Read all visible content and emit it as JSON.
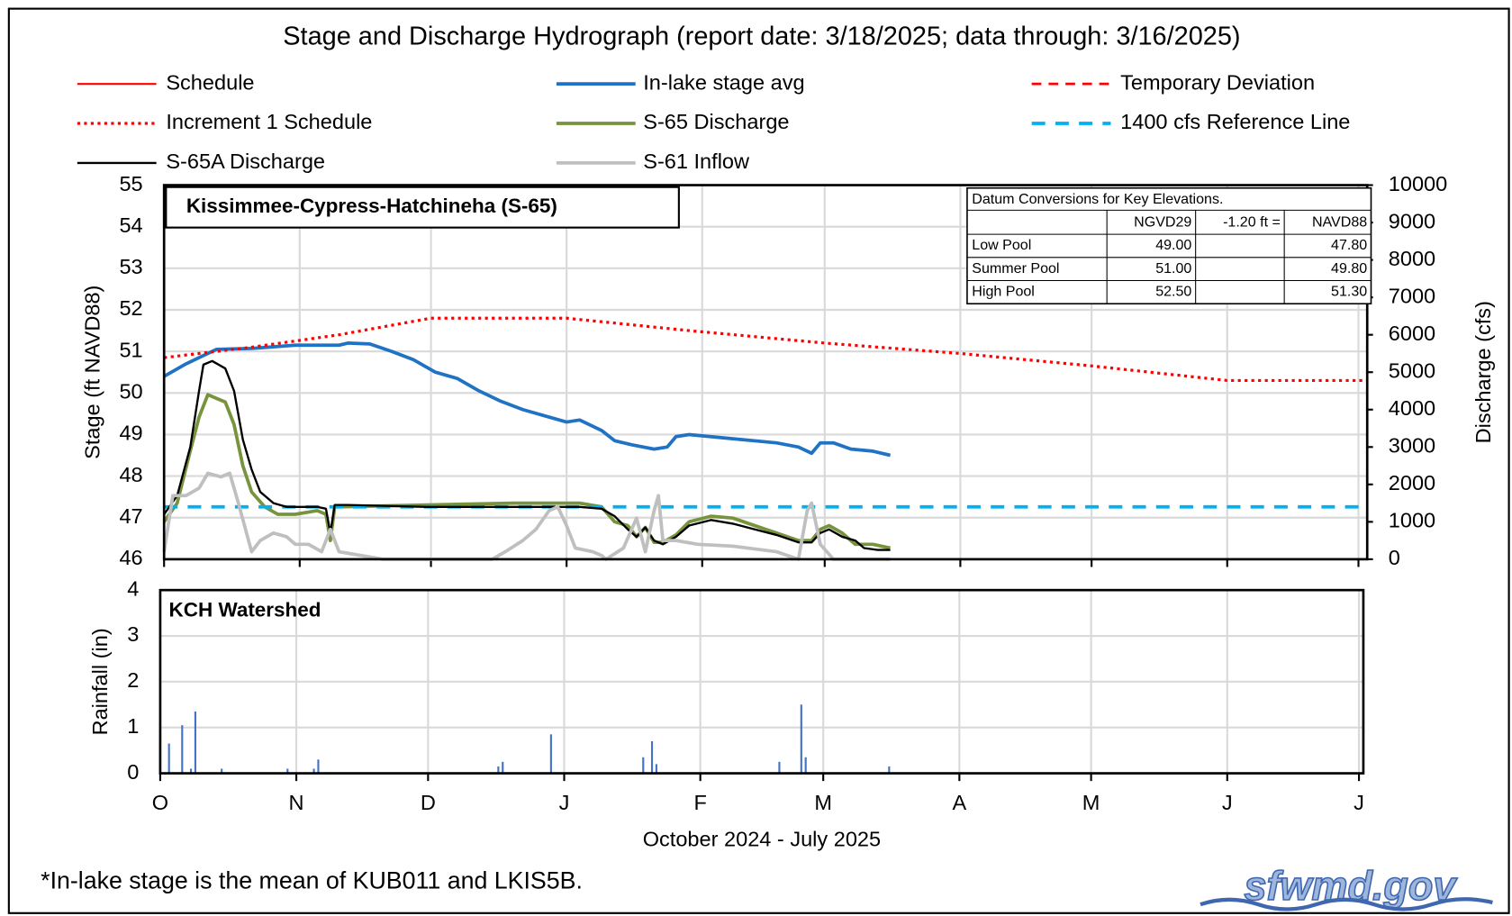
{
  "chart_data": [
    {
      "type": "line",
      "title": "Stage and Discharge Hydrograph  (report date: 3/18/2025; data through:  3/16/2025)",
      "panel_label": "Kissimmee-Cypress-Hatchineha  (S-65)",
      "y_label": "Stage (ft NAVD88)",
      "y2_label": "Discharge (cfs)",
      "xlim": [
        0,
        275
      ],
      "xticks": [
        0,
        31,
        61,
        92,
        123,
        151,
        182,
        212,
        243,
        273
      ],
      "ylim": [
        46,
        55
      ],
      "yticks": [
        46,
        47,
        48,
        49,
        50,
        51,
        52,
        53,
        54,
        55
      ],
      "y2lim": [
        0,
        10000
      ],
      "y2ticks": [
        0,
        1000,
        2000,
        3000,
        4000,
        5000,
        6000,
        7000,
        8000,
        9000,
        10000
      ],
      "grid": true,
      "series": [
        {
          "name": "Schedule",
          "color": "#ff0000",
          "dash": "solid",
          "line_width": 2,
          "axis": "y",
          "x": [],
          "values": []
        },
        {
          "name": "In-lake stage avg",
          "color": "#1f72c4",
          "dash": "solid",
          "line_width": 3.5,
          "axis": "y",
          "x": [
            0,
            5,
            8,
            12,
            20,
            30,
            40,
            42,
            47,
            52,
            57,
            62,
            67,
            72,
            77,
            82,
            87,
            92,
            95,
            100,
            103,
            107,
            112,
            115,
            117,
            120,
            130,
            140,
            145,
            148,
            150,
            153,
            157,
            162,
            166
          ],
          "values": [
            50.4,
            50.7,
            50.85,
            51.05,
            51.07,
            51.15,
            51.15,
            51.2,
            51.18,
            51.0,
            50.8,
            50.5,
            50.35,
            50.05,
            49.8,
            49.6,
            49.45,
            49.3,
            49.35,
            49.1,
            48.85,
            48.75,
            48.65,
            48.7,
            48.95,
            49.0,
            48.9,
            48.8,
            48.7,
            48.55,
            48.8,
            48.8,
            48.65,
            48.6,
            48.5
          ]
        },
        {
          "name": "Temporary Deviation",
          "color": "#ff0000",
          "dash": "dashed",
          "line_width": 2.5,
          "axis": "y",
          "x": [],
          "values": []
        },
        {
          "name": "Increment 1 Schedule",
          "color": "#ff0000",
          "dash": "dotted",
          "line_width": 3,
          "axis": "y",
          "x": [
            0,
            20,
            40,
            61,
            92,
            120,
            151,
            182,
            212,
            243,
            275
          ],
          "values": [
            50.85,
            51.1,
            51.4,
            51.8,
            51.8,
            51.5,
            51.2,
            50.95,
            50.65,
            50.3,
            50.3
          ]
        },
        {
          "name": "S-65 Discharge",
          "color": "#77933c",
          "dash": "solid",
          "line_width": 3.5,
          "axis": "y2",
          "x": [
            0,
            3,
            6,
            8,
            10,
            12,
            14,
            16,
            18,
            20,
            23,
            26,
            30,
            35,
            37,
            38,
            39,
            60,
            80,
            95,
            100,
            103,
            106,
            108,
            110,
            112,
            114,
            117,
            120,
            125,
            130,
            135,
            140,
            145,
            148,
            150,
            152,
            155,
            158,
            162,
            166
          ],
          "values": [
            1000,
            1500,
            2900,
            3800,
            4400,
            4300,
            4200,
            3600,
            2500,
            1800,
            1400,
            1200,
            1200,
            1300,
            1200,
            500,
            1400,
            1450,
            1500,
            1500,
            1400,
            1000,
            900,
            600,
            850,
            450,
            450,
            650,
            1000,
            1150,
            1100,
            900,
            700,
            500,
            500,
            800,
            900,
            700,
            400,
            400,
            300
          ]
        },
        {
          "name": "1400 cfs Reference Line",
          "color": "#00b0f0",
          "dash": "dashed",
          "line_width": 3.5,
          "axis": "y2",
          "x": [
            0,
            275
          ],
          "values": [
            1400,
            1400
          ]
        },
        {
          "name": "S-65A Discharge",
          "color": "#000000",
          "dash": "solid",
          "line_width": 2.2,
          "axis": "y2",
          "x": [
            0,
            3,
            6,
            8,
            9,
            11,
            14,
            16,
            18,
            20,
            22,
            25,
            28,
            33,
            35,
            37,
            38,
            39,
            42,
            60,
            80,
            95,
            100,
            103,
            106,
            108,
            110,
            112,
            114,
            117,
            120,
            125,
            130,
            135,
            140,
            145,
            148,
            150,
            152,
            155,
            158,
            160,
            163,
            166
          ],
          "values": [
            1200,
            1700,
            3000,
            4500,
            5200,
            5300,
            5100,
            4500,
            3200,
            2400,
            1800,
            1500,
            1400,
            1400,
            1400,
            1350,
            700,
            1450,
            1450,
            1400,
            1400,
            1400,
            1350,
            1150,
            800,
            600,
            850,
            500,
            400,
            600,
            900,
            1050,
            950,
            800,
            650,
            450,
            450,
            700,
            800,
            600,
            500,
            300,
            250,
            250
          ]
        },
        {
          "name": "S-61 Inflow",
          "color": "#bfbfbf",
          "dash": "solid",
          "line_width": 3.5,
          "axis": "y2",
          "x": [
            0,
            2,
            5,
            8,
            10,
            13,
            15,
            17,
            20,
            22,
            25,
            28,
            30,
            33,
            36,
            38,
            40,
            45,
            50,
            75,
            78,
            82,
            85,
            88,
            90,
            92,
            94,
            98,
            100,
            101,
            105,
            108,
            110,
            112,
            113,
            114,
            117,
            122,
            130,
            140,
            145,
            147,
            148,
            150,
            153,
            158,
            162,
            166
          ],
          "values": [
            200,
            1700,
            1700,
            1900,
            2300,
            2200,
            2300,
            1500,
            200,
            500,
            700,
            600,
            400,
            400,
            200,
            800,
            200,
            100,
            0,
            0,
            200,
            500,
            800,
            1300,
            1400,
            900,
            300,
            200,
            100,
            0,
            300,
            1100,
            200,
            1300,
            1700,
            500,
            500,
            400,
            350,
            200,
            0,
            1300,
            1500,
            400,
            0,
            0,
            0,
            0
          ]
        }
      ]
    },
    {
      "type": "bar",
      "panel_label": "KCH Watershed",
      "y_label": "Rainfall (in)",
      "x_label": "October 2024 - July 2025",
      "xlim": [
        0,
        274
      ],
      "xticks": [
        {
          "value": 0,
          "label": "O"
        },
        {
          "value": 31,
          "label": "N"
        },
        {
          "value": 61,
          "label": "D"
        },
        {
          "value": 92,
          "label": "J"
        },
        {
          "value": 123,
          "label": "F"
        },
        {
          "value": 151,
          "label": "M"
        },
        {
          "value": 182,
          "label": "A"
        },
        {
          "value": 212,
          "label": "M"
        },
        {
          "value": 243,
          "label": "J"
        },
        {
          "value": 273,
          "label": "J"
        }
      ],
      "ylim": [
        0,
        4
      ],
      "yticks": [
        0,
        1,
        2,
        3,
        4
      ],
      "grid": true,
      "color": "#4472c4",
      "x": [
        0,
        2,
        5,
        7,
        8,
        14,
        29,
        35,
        36,
        77,
        78,
        89,
        110,
        112,
        113,
        141,
        146,
        147,
        166
      ],
      "values": [
        0.8,
        0.65,
        1.05,
        0.1,
        1.35,
        0.1,
        0.1,
        0.1,
        0.3,
        0.15,
        0.25,
        0.85,
        0.35,
        0.7,
        0.2,
        0.25,
        1.5,
        0.35,
        0.15
      ]
    }
  ],
  "datum_table": {
    "title": "Datum Conversions for Key Elevations.",
    "header": [
      "NGVD29",
      "-1.20 ft =",
      "NAVD88"
    ],
    "rows": [
      [
        "Low Pool",
        "49.00",
        "47.80"
      ],
      [
        "Summer Pool",
        "51.00",
        "49.80"
      ],
      [
        "High Pool",
        "52.50",
        "51.30"
      ]
    ]
  },
  "footnote": "*In-lake stage is the mean of KUB011 and LKIS5B.",
  "logo": "sfwmd.gov"
}
